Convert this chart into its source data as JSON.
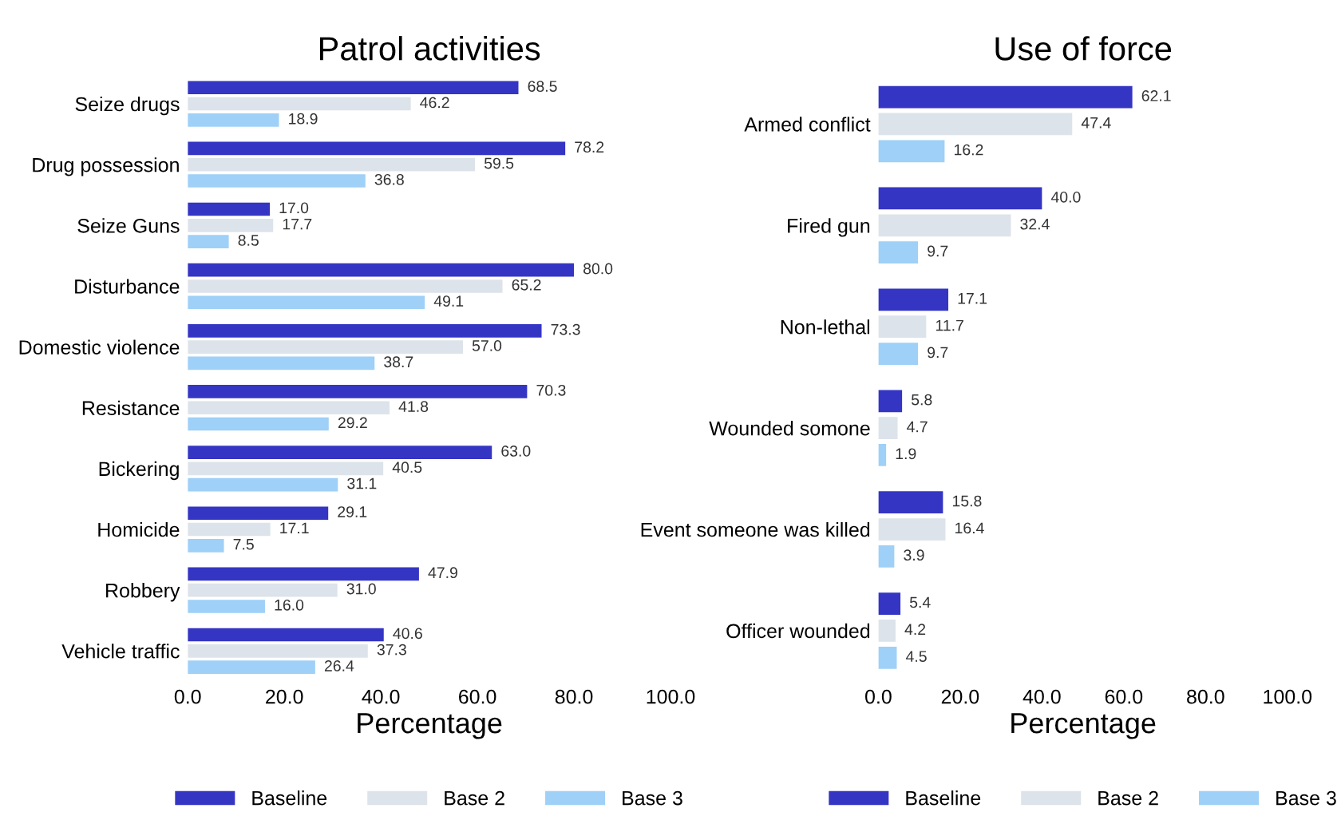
{
  "chart_data": [
    {
      "type": "bar",
      "orientation": "horizontal",
      "title": "Patrol activities",
      "xlabel": "Percentage",
      "categories": [
        "Seize drugs",
        "Drug possession",
        "Seize Guns",
        "Disturbance",
        "Domestic violence",
        "Resistance",
        "Bickering",
        "Homicide",
        "Robbery",
        "Vehicle traffic"
      ],
      "series": [
        {
          "name": "Baseline",
          "color": "#3535c4",
          "values": [
            68.5,
            78.2,
            17.0,
            80.0,
            73.3,
            70.3,
            63.0,
            29.1,
            47.9,
            40.6
          ],
          "value_labels": [
            "68.5",
            "78.2",
            "17.0",
            "80.0",
            "73.3",
            "70.3",
            "63.0",
            "29.1",
            "47.9",
            "40.6"
          ]
        },
        {
          "name": "Base 2",
          "color": "#dde3ea",
          "values": [
            46.2,
            59.5,
            17.7,
            65.2,
            57.0,
            41.8,
            40.5,
            17.1,
            31.0,
            37.3
          ],
          "value_labels": [
            "46.2",
            "59.5",
            "17.7",
            "65.2",
            "57.0",
            "41.8",
            "40.5",
            "17.1",
            "31.0",
            "37.3"
          ]
        },
        {
          "name": "Base 3",
          "color": "#9fd0f7",
          "values": [
            18.9,
            36.8,
            8.5,
            49.1,
            38.7,
            29.2,
            31.1,
            7.5,
            16.0,
            26.4
          ],
          "value_labels": [
            "18.9",
            "36.8",
            "8.5",
            "49.1",
            "38.7",
            "29.2",
            "31.1",
            "7.5",
            "16.0",
            "26.4"
          ]
        }
      ],
      "xlim": [
        0,
        100
      ],
      "xticks": [
        {
          "value": 0,
          "label": "0.0"
        },
        {
          "value": 20,
          "label": "20.0"
        },
        {
          "value": 40,
          "label": "40.0"
        },
        {
          "value": 60,
          "label": "60.0"
        },
        {
          "value": 80,
          "label": "80.0"
        },
        {
          "value": 100,
          "label": "100.0"
        }
      ],
      "grid": false,
      "legend": "bottom"
    },
    {
      "type": "bar",
      "orientation": "horizontal",
      "title": "Use of force",
      "xlabel": "Percentage",
      "categories": [
        "Armed conflict",
        "Fired gun",
        "Non-lethal",
        "Wounded somone",
        "Event someone was killed",
        "Officer wounded"
      ],
      "series": [
        {
          "name": "Baseline",
          "color": "#3535c4",
          "values": [
            62.1,
            40.0,
            17.1,
            5.8,
            15.8,
            5.4
          ],
          "value_labels": [
            "62.1",
            "40.0",
            "17.1",
            "5.8",
            "15.8",
            "5.4"
          ]
        },
        {
          "name": "Base 2",
          "color": "#dde3ea",
          "values": [
            47.4,
            32.4,
            11.7,
            4.7,
            16.4,
            4.2
          ],
          "value_labels": [
            "47.4",
            "32.4",
            "11.7",
            "4.7",
            "16.4",
            "4.2"
          ]
        },
        {
          "name": "Base 3",
          "color": "#9fd0f7",
          "values": [
            16.2,
            9.7,
            9.7,
            1.9,
            3.9,
            4.5
          ],
          "value_labels": [
            "16.2",
            "9.7",
            "9.7",
            "1.9",
            "3.9",
            "4.5"
          ]
        }
      ],
      "xlim": [
        0,
        100
      ],
      "xticks": [
        {
          "value": 0,
          "label": "0.0"
        },
        {
          "value": 20,
          "label": "20.0"
        },
        {
          "value": 40,
          "label": "40.0"
        },
        {
          "value": 60,
          "label": "60.0"
        },
        {
          "value": 80,
          "label": "80.0"
        },
        {
          "value": 100,
          "label": "100.0"
        }
      ],
      "grid": false,
      "legend": "bottom"
    }
  ]
}
